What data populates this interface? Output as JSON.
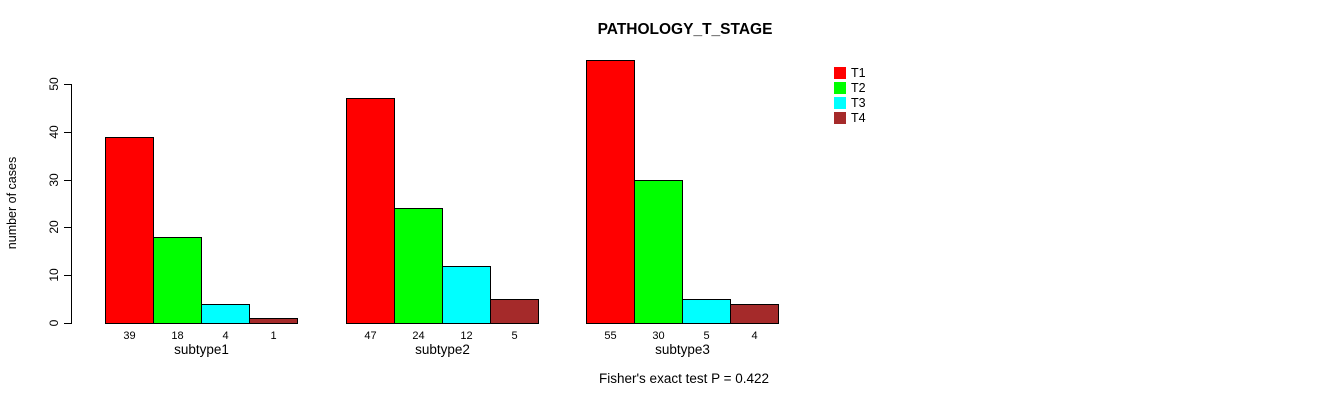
{
  "title": "PATHOLOGY_T_STAGE",
  "ylabel": "number of cases",
  "footer": "Fisher's exact test P = 0.422",
  "legend": {
    "items": [
      {
        "label": "T1",
        "color": "#FF0000"
      },
      {
        "label": "T2",
        "color": "#00FF00"
      },
      {
        "label": "T3",
        "color": "#00FFFF"
      },
      {
        "label": "T4",
        "color": "#A52A2A"
      }
    ]
  },
  "chart_data": {
    "type": "bar",
    "title": "PATHOLOGY_T_STAGE",
    "xlabel": "",
    "ylabel": "number of cases",
    "categories": [
      "subtype1",
      "subtype2",
      "subtype3"
    ],
    "series": [
      {
        "name": "T1",
        "color": "#FF0000",
        "values": [
          39,
          47,
          55
        ]
      },
      {
        "name": "T2",
        "color": "#00FF00",
        "values": [
          18,
          24,
          30
        ]
      },
      {
        "name": "T3",
        "color": "#00FFFF",
        "values": [
          4,
          12,
          5
        ]
      },
      {
        "name": "T4",
        "color": "#A52A2A",
        "values": [
          1,
          5,
          4
        ]
      }
    ],
    "bar_value_labels": [
      [
        39,
        18,
        4,
        1
      ],
      [
        47,
        24,
        12,
        5
      ],
      [
        55,
        30,
        5,
        4
      ]
    ],
    "yticks": [
      0,
      10,
      20,
      30,
      40,
      50
    ],
    "ylim": [
      0,
      55
    ],
    "grid": false,
    "legend_position": "top-right",
    "annotation": "Fisher's exact test P = 0.422",
    "bar_edge_color": "#000000"
  }
}
